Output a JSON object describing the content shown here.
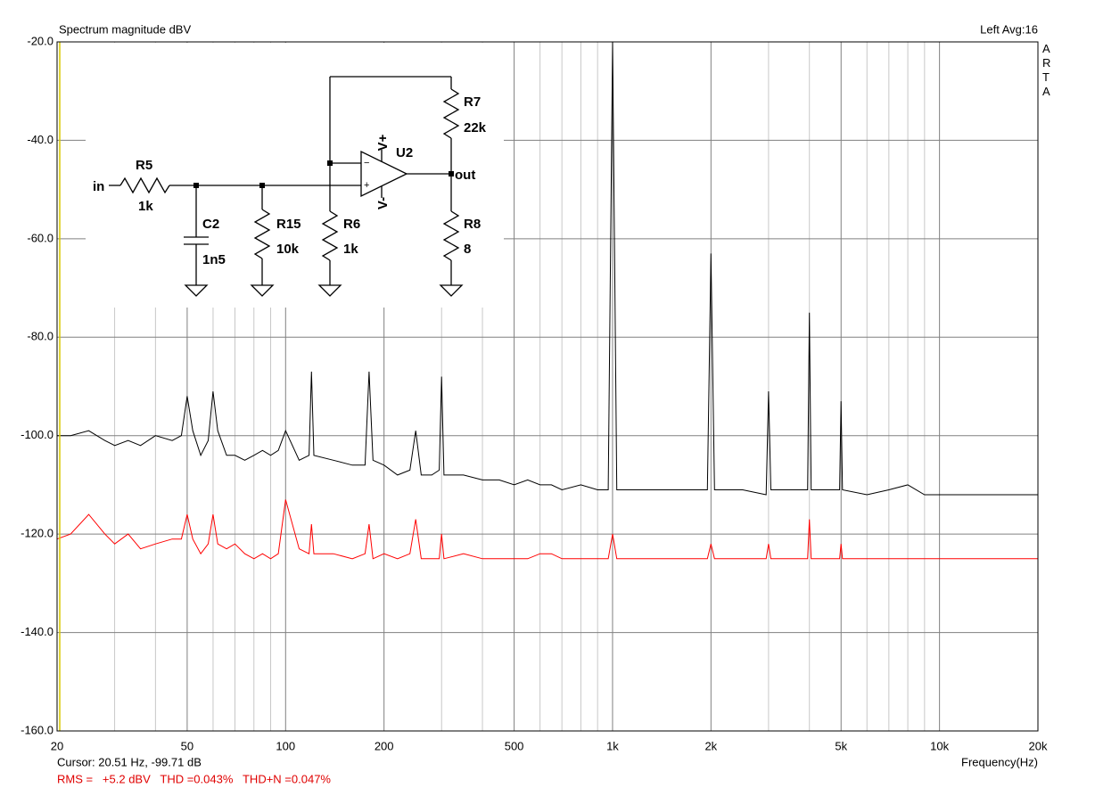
{
  "chart_data": {
    "type": "line",
    "xscale": "log",
    "title": "Spectrum magnitude dBV",
    "status": "Left  Avg:16",
    "brand": "ARTA",
    "xlabel": "Frequency(Hz)",
    "cursor_text": "Cursor: 20.51 Hz, -99.71 dB",
    "stats_text": "RMS =   +5.2 dBV   THD =0.043%   THD+N =0.047%",
    "xlim": [
      20,
      20000
    ],
    "ylim": [
      -160,
      -20
    ],
    "xticks": [
      20,
      50,
      100,
      200,
      500,
      {
        "value": 1000,
        "label": "1k"
      },
      {
        "value": 2000,
        "label": "2k"
      },
      {
        "value": 5000,
        "label": "5k"
      },
      {
        "value": 10000,
        "label": "10k"
      },
      {
        "value": 20000,
        "label": "20k"
      }
    ],
    "xminor": [
      30,
      40,
      60,
      70,
      80,
      90,
      300,
      400,
      600,
      700,
      800,
      900,
      3000,
      4000,
      6000,
      7000,
      8000,
      9000
    ],
    "yticks": [
      {
        "value": -160,
        "label": "-160.0"
      },
      {
        "value": -140,
        "label": "-140.0"
      },
      {
        "value": -120,
        "label": "-120.0"
      },
      {
        "value": -100,
        "label": "-100.0"
      },
      {
        "value": -80,
        "label": "-80.0"
      },
      {
        "value": -60,
        "label": "-60.0"
      },
      {
        "value": -40,
        "label": "-40.0"
      },
      {
        "value": -20,
        "label": "-20.0"
      }
    ],
    "grid": true,
    "x": [
      20,
      22,
      25,
      28,
      30,
      33,
      36,
      40,
      45,
      48,
      50,
      52,
      55,
      58,
      60,
      62,
      66,
      70,
      75,
      80,
      85,
      90,
      95,
      100,
      110,
      118,
      120,
      122,
      140,
      160,
      175,
      180,
      185,
      200,
      220,
      240,
      250,
      260,
      280,
      295,
      300,
      305,
      350,
      400,
      450,
      500,
      550,
      600,
      650,
      700,
      800,
      900,
      970,
      1000,
      1030,
      1200,
      1500,
      1800,
      1950,
      2000,
      2050,
      2500,
      2950,
      3000,
      3050,
      3500,
      3950,
      4000,
      4050,
      4500,
      4950,
      5000,
      5050,
      6000,
      7000,
      8000,
      9000,
      10000,
      12000,
      14000,
      16000,
      18000,
      20000
    ],
    "series": [
      {
        "color": "#000000",
        "values": [
          -100,
          -100,
          -99,
          -101,
          -102,
          -101,
          -102,
          -100,
          -101,
          -100,
          -92,
          -99,
          -104,
          -101,
          -91,
          -99,
          -104,
          -104,
          -105,
          -104,
          -103,
          -104,
          -103,
          -99,
          -105,
          -104,
          -87,
          -104,
          -105,
          -106,
          -106,
          -87,
          -105,
          -106,
          -108,
          -107,
          -99,
          -108,
          -108,
          -107,
          -88,
          -108,
          -108,
          -109,
          -109,
          -110,
          -109,
          -110,
          -110,
          -111,
          -110,
          -111,
          -111,
          -20,
          -111,
          -111,
          -111,
          -111,
          -111,
          -63,
          -111,
          -111,
          -112,
          -91,
          -111,
          -111,
          -111,
          -75,
          -111,
          -111,
          -111,
          -93,
          -111,
          -112,
          -111,
          -110,
          -112,
          -112,
          -112,
          -112,
          -112,
          -112,
          -112
        ]
      },
      {
        "color": "#ff0000",
        "values": [
          -121,
          -120,
          -116,
          -120,
          -122,
          -120,
          -123,
          -122,
          -121,
          -121,
          -116,
          -121,
          -124,
          -122,
          -116,
          -122,
          -123,
          -122,
          -124,
          -125,
          -124,
          -125,
          -124,
          -113,
          -123,
          -124,
          -118,
          -124,
          -124,
          -125,
          -124,
          -118,
          -125,
          -124,
          -125,
          -124,
          -117,
          -125,
          -125,
          -125,
          -120,
          -125,
          -124,
          -125,
          -125,
          -125,
          -125,
          -124,
          -124,
          -125,
          -125,
          -125,
          -125,
          -120,
          -125,
          -125,
          -125,
          -125,
          -125,
          -122,
          -125,
          -125,
          -125,
          -122,
          -125,
          -125,
          -125,
          -117,
          -125,
          -125,
          -125,
          -122,
          -125,
          -125,
          -125,
          -125,
          -125,
          -125,
          -125,
          -125,
          -125,
          -125,
          -125
        ]
      }
    ]
  },
  "schematic": {
    "labels": [
      "in",
      "R5",
      "1k",
      "C2",
      "1n5",
      "R15",
      "10k",
      "R6",
      "1k",
      "R7",
      "22k",
      "R8",
      "8",
      "U2",
      "out",
      "V+",
      "V-",
      "−",
      "+"
    ]
  }
}
